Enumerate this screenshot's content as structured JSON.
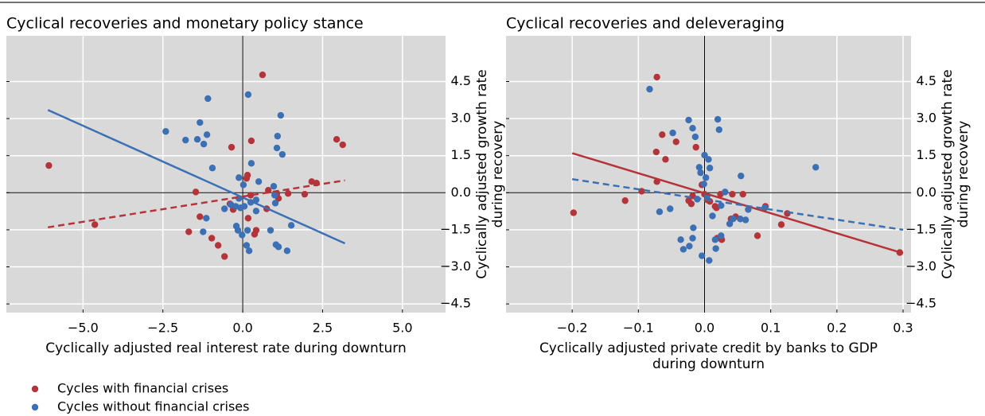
{
  "chart_data": [
    {
      "type": "scatter",
      "title": "Cyclical recoveries and monetary policy stance",
      "xlabel": [
        "Cyclically adjusted real interest rate during downturn"
      ],
      "ylabel": [
        "Cyclically adjusted growth rate",
        "during recovery"
      ],
      "xlim": [
        -7.4,
        6.35
      ],
      "ylim": [
        -4.85,
        6.35
      ],
      "xticks": [
        {
          "value": -5,
          "label": "−5.0"
        },
        {
          "value": -2.5,
          "label": "−2.5"
        },
        {
          "value": 0,
          "label": "0.0"
        },
        {
          "value": 2.5,
          "label": "2.5"
        },
        {
          "value": 5,
          "label": "5.0"
        }
      ],
      "yticks": [
        4.5,
        {
          "value": 3,
          "label": "3.0"
        },
        1.5,
        {
          "value": 0,
          "label": "0.0"
        },
        {
          "value": -1.5,
          "label": "−1.5"
        },
        {
          "value": -3,
          "label": "−3.0"
        },
        {
          "value": -4.5,
          "label": "−4.5"
        }
      ],
      "grid": true,
      "zero_lines": true,
      "series": [
        {
          "name": "Cycles with financial crises",
          "color": "#b5343a",
          "x": [
            -6.07,
            -4.63,
            -1.47,
            -1.69,
            -1.34,
            -0.97,
            -0.77,
            -0.57,
            -0.4,
            -0.35,
            -0.3,
            0.12,
            0.15,
            0.27,
            0.25,
            0.17,
            0.37,
            0.62,
            0.42,
            0.8,
            1.42,
            1.07,
            1.94,
            2.16,
            2.31,
            2.94,
            3.13,
            0.75,
            1.12
          ],
          "values": [
            1.1,
            -1.29,
            0.03,
            -1.58,
            -0.97,
            -1.84,
            -2.13,
            -2.58,
            -0.45,
            1.84,
            -0.68,
            0.58,
            0.71,
            2.1,
            -0.1,
            -1.03,
            -1.68,
            4.77,
            -1.52,
            0.1,
            -0.03,
            -0.03,
            -0.06,
            0.45,
            0.39,
            2.16,
            1.94,
            -0.65,
            -0.23
          ]
        },
        {
          "name": "Cycles without financial crises",
          "color": "#3c70b4",
          "x": [
            -2.41,
            -1.79,
            -1.34,
            -1.12,
            -1.22,
            -1.42,
            -1.09,
            -0.95,
            -1.14,
            -1.24,
            -0.57,
            -0.37,
            -0.22,
            -0.12,
            -0.12,
            -0.07,
            -0.2,
            -0.15,
            -0.02,
            0.05,
            0.15,
            0.12,
            0.2,
            0.25,
            0.17,
            0.27,
            0.5,
            0.42,
            0.42,
            0.87,
            0.97,
            1.02,
            1.09,
            1.07,
            1.19,
            1.24,
            1.04,
            1.12,
            1.39,
            1.52,
            1.0,
            0.02
          ],
          "values": [
            2.48,
            2.13,
            2.84,
            2.35,
            1.97,
            2.16,
            3.81,
            1.0,
            -1.03,
            -1.58,
            -0.65,
            -0.48,
            -0.55,
            0.61,
            -0.23,
            -0.61,
            -1.35,
            -1.52,
            -1.71,
            -0.55,
            -1.52,
            -2.13,
            -2.35,
            -0.39,
            3.97,
            1.19,
            0.45,
            -0.74,
            -0.29,
            -1.52,
            0.26,
            -0.42,
            2.29,
            1.81,
            3.13,
            1.55,
            -2.1,
            -2.19,
            -2.35,
            -1.32,
            -0.1,
            0.32
          ]
        }
      ],
      "fits": [
        {
          "color": "#3c70b4",
          "dashed": false,
          "x": [
            -6.1,
            3.2
          ],
          "y": [
            3.35,
            -2.05
          ]
        },
        {
          "color": "#b5343a",
          "dashed": true,
          "x": [
            -6.1,
            3.2
          ],
          "y": [
            -1.4,
            0.5
          ]
        }
      ]
    },
    {
      "type": "scatter",
      "title": "Cyclical recoveries and deleveraging",
      "xlabel": [
        "Cyclically adjusted private credit by banks to GDP",
        "during downturn"
      ],
      "ylabel": [
        "Cyclically adjusted growth rate",
        "during recovery"
      ],
      "xlim": [
        -0.3,
        0.312
      ],
      "ylim": [
        -4.85,
        6.35
      ],
      "xticks": [
        {
          "value": -0.2,
          "label": "−0.2"
        },
        {
          "value": -0.1,
          "label": "−0.1"
        },
        {
          "value": 0,
          "label": "0.0"
        },
        0.1,
        0.2,
        0.3
      ],
      "yticks": [
        4.5,
        {
          "value": 3,
          "label": "3.0"
        },
        1.5,
        {
          "value": 0,
          "label": "0.0"
        },
        {
          "value": -1.5,
          "label": "−1.5"
        },
        {
          "value": -3,
          "label": "−3.0"
        },
        {
          "value": -4.5,
          "label": "−4.5"
        }
      ],
      "grid": true,
      "zero_lines": true,
      "series": [
        {
          "color": "#b5343a",
          "x": [
            -0.198,
            -0.12,
            -0.095,
            -0.072,
            -0.059,
            -0.043,
            -0.073,
            -0.064,
            -0.072,
            -0.024,
            -0.02,
            -0.013,
            -0.018,
            -0.004,
            0.0,
            0.004,
            0.008,
            0.016,
            0.019,
            0.018,
            0.026,
            0.024,
            0.042,
            0.04,
            0.047,
            0.092,
            0.08,
            0.125,
            0.116,
            0.295,
            0.058
          ],
          "values": [
            -0.81,
            -0.32,
            0.06,
            0.45,
            1.35,
            2.06,
            1.65,
            2.35,
            4.68,
            -0.32,
            -0.45,
            1.84,
            -0.13,
            0.32,
            -0.06,
            -0.29,
            -0.35,
            -0.55,
            -1.84,
            -0.61,
            -1.9,
            -0.06,
            -0.06,
            -1.06,
            -0.97,
            -0.55,
            -1.74,
            -0.84,
            -1.29,
            -2.42,
            -0.06
          ]
        },
        {
          "color": "#3c70b4",
          "x": [
            -0.083,
            -0.068,
            -0.052,
            -0.048,
            -0.036,
            -0.032,
            -0.023,
            -0.024,
            -0.018,
            -0.014,
            -0.018,
            -0.017,
            -0.011,
            -0.008,
            -0.006,
            -0.004,
            -0.001,
            0.0,
            0.002,
            0.006,
            0.007,
            0.008,
            0.004,
            0.012,
            0.016,
            0.017,
            0.02,
            0.022,
            0.025,
            0.025,
            0.031,
            0.038,
            0.043,
            0.066,
            0.062,
            0.091,
            0.055,
            0.168,
            0.054
          ],
          "values": [
            4.19,
            -0.77,
            -0.65,
            2.42,
            -1.9,
            -2.29,
            -2.16,
            2.94,
            2.61,
            2.26,
            -1.84,
            -1.42,
            -0.26,
            1.03,
            0.81,
            -2.55,
            0.35,
            1.52,
            0.61,
            1.35,
            -2.74,
            1.0,
            -0.13,
            -0.94,
            -1.9,
            -2.26,
            2.97,
            2.55,
            -1.74,
            -0.52,
            0.03,
            -1.26,
            -1.06,
            -0.68,
            -1.1,
            -0.61,
            0.68,
            1.03,
            -1.06
          ]
        }
      ],
      "fits": [
        {
          "color": "#b5343a",
          "dashed": false,
          "x": [
            -0.2,
            0.3
          ],
          "y": [
            1.6,
            -2.45
          ]
        },
        {
          "color": "#3c70b4",
          "dashed": true,
          "x": [
            -0.2,
            0.3
          ],
          "y": [
            0.55,
            -1.5
          ]
        }
      ]
    }
  ]
}
